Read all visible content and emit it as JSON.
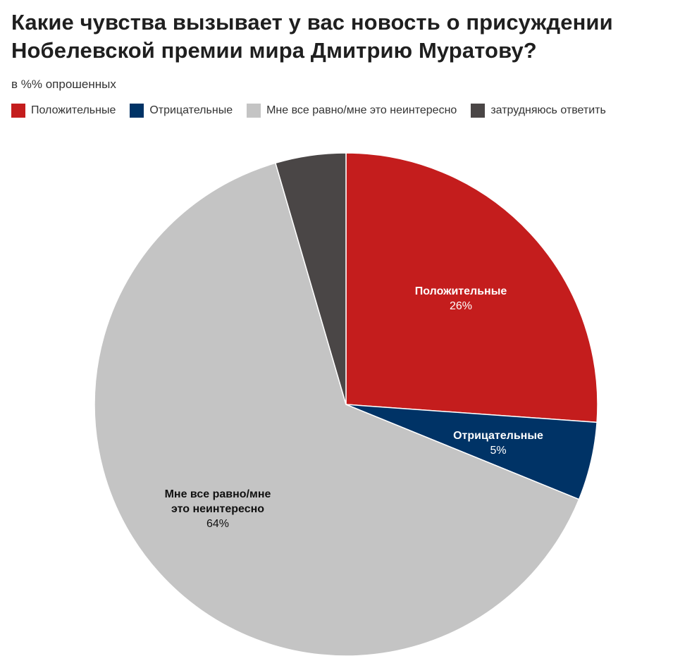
{
  "title": "Какие чувства вызывает у вас новость о присуждении Нобелевской премии мира Дмитрию Муратову?",
  "subtitle": "в %% опрошенных",
  "chart_data": {
    "type": "pie",
    "title": "Какие чувства вызывает у вас новость о присуждении Нобелевской премии мира Дмитрию Муратову?",
    "subtitle": "в %% опрошенных",
    "legend_position": "top-left",
    "slices": [
      {
        "label": "Положительные",
        "value": 26,
        "value_label": "26%",
        "color": "#c41d1d",
        "label_color": "#ffffff",
        "label_lines": [
          "Положительные"
        ]
      },
      {
        "label": "Отрицательные",
        "value": 5,
        "value_label": "5%",
        "color": "#003366",
        "label_color": "#ffffff",
        "label_lines": [
          "Отрицательные"
        ]
      },
      {
        "label": "Мне все равно/мне это неинтересно",
        "value": 64,
        "value_label": "64%",
        "color": "#c4c4c4",
        "label_color": "#111111",
        "label_lines": [
          "Мне все равно/мне",
          "это неинтересно"
        ]
      },
      {
        "label": "затрудняюсь ответить",
        "value": 4.5,
        "value_label": "",
        "color": "#4a4646",
        "label_color": "#ffffff",
        "label_lines": []
      }
    ]
  }
}
